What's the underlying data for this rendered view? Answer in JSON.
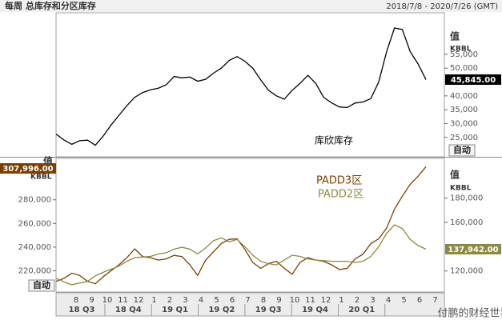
{
  "title": "每周 总库存和分区库存",
  "date_range": "2018/7/8 - 2020/7/26 (GMT)",
  "watermark": "付鹏的财经世界",
  "month_labels": [
    "8",
    "9",
    "10",
    "11",
    "12",
    "1",
    "2",
    "3",
    "4",
    "5",
    "6",
    "7",
    "8",
    "9",
    "10",
    "11",
    "12",
    "1",
    "2",
    "3",
    "4",
    "5",
    "6",
    "7"
  ],
  "quarter_labels": [
    "18 Q3",
    "18 Q4",
    "19 Q1",
    "19 Q2",
    "19 Q3",
    "19 Q4",
    "20 Q1"
  ],
  "chart_data": [
    {
      "type": "line",
      "axis_label": "值",
      "unit": "KBBL",
      "auto_button": "自动",
      "ylim": [
        18000,
        70000
      ],
      "yticks": [
        {
          "value": 25000,
          "label": "25,000"
        },
        {
          "value": 30000,
          "label": "30,000"
        },
        {
          "value": 35000,
          "label": "35,000"
        },
        {
          "value": 40000,
          "label": "40,000"
        },
        {
          "value": 50000,
          "label": "50,000"
        },
        {
          "value": 55000,
          "label": "55,000"
        }
      ],
      "series": [
        {
          "name": "库欣库存",
          "color": "#000000",
          "end_label": "45,845.00",
          "values": [
            26200,
            24100,
            22500,
            23800,
            24000,
            22200,
            25500,
            29500,
            33000,
            36500,
            39500,
            41200,
            42200,
            42800,
            44000,
            47000,
            46500,
            46800,
            45300,
            46000,
            48200,
            50000,
            52800,
            54200,
            52500,
            50000,
            45800,
            42000,
            40000,
            38800,
            42000,
            44500,
            47400,
            44500,
            39500,
            37500,
            36000,
            35800,
            37400,
            37800,
            39000,
            45000,
            56000,
            64500,
            64000,
            56000,
            51500,
            45845
          ]
        }
      ]
    },
    {
      "type": "line",
      "axis_label": "值",
      "unit": "KBBL",
      "y2_axis_label": "值",
      "y2_unit": "KBBL",
      "auto_button": "自动",
      "ylim": [
        202000,
        315000
      ],
      "yticks": [
        {
          "value": 220000,
          "label": "220,000"
        },
        {
          "value": 240000,
          "label": "240,000"
        },
        {
          "value": 260000,
          "label": "260,000"
        },
        {
          "value": 280000,
          "label": "280,000"
        }
      ],
      "y2lim": [
        102700,
        212700
      ],
      "y2ticks": [
        {
          "value": 120000,
          "label": "120,000"
        },
        {
          "value": 160000,
          "label": "160,000"
        },
        {
          "value": 180000,
          "label": "180,000"
        }
      ],
      "series": [
        {
          "name": "PADD3区",
          "color": "#7b3f00",
          "end_label": "307,996.00",
          "values": [
            211000,
            213500,
            218000,
            216000,
            211000,
            209000,
            215000,
            220000,
            225000,
            231000,
            238500,
            232000,
            231000,
            229000,
            230000,
            233000,
            232000,
            225000,
            216000,
            229000,
            236000,
            243000,
            246500,
            247000,
            238000,
            227000,
            222000,
            226000,
            228000,
            222000,
            217000,
            227000,
            231000,
            229000,
            228000,
            225000,
            221000,
            222000,
            230000,
            234000,
            243000,
            247000,
            256000,
            272000,
            283000,
            293000,
            300000,
            307996
          ]
        },
        {
          "name": "PADD2区",
          "color": "#8a8a40",
          "axis": "y2",
          "end_label": "137,942.00",
          "values": [
            114000,
            111000,
            108700,
            110000,
            111500,
            116000,
            119000,
            121500,
            124000,
            128000,
            131000,
            131500,
            132000,
            134000,
            135000,
            138000,
            139500,
            138000,
            134000,
            139000,
            145000,
            147300,
            144000,
            146000,
            140000,
            133000,
            128000,
            126000,
            125000,
            129000,
            133000,
            132000,
            130000,
            129000,
            128500,
            128000,
            128000,
            128000,
            127000,
            128000,
            132000,
            140000,
            151000,
            158000,
            155000,
            146000,
            141000,
            137942
          ]
        }
      ]
    }
  ]
}
